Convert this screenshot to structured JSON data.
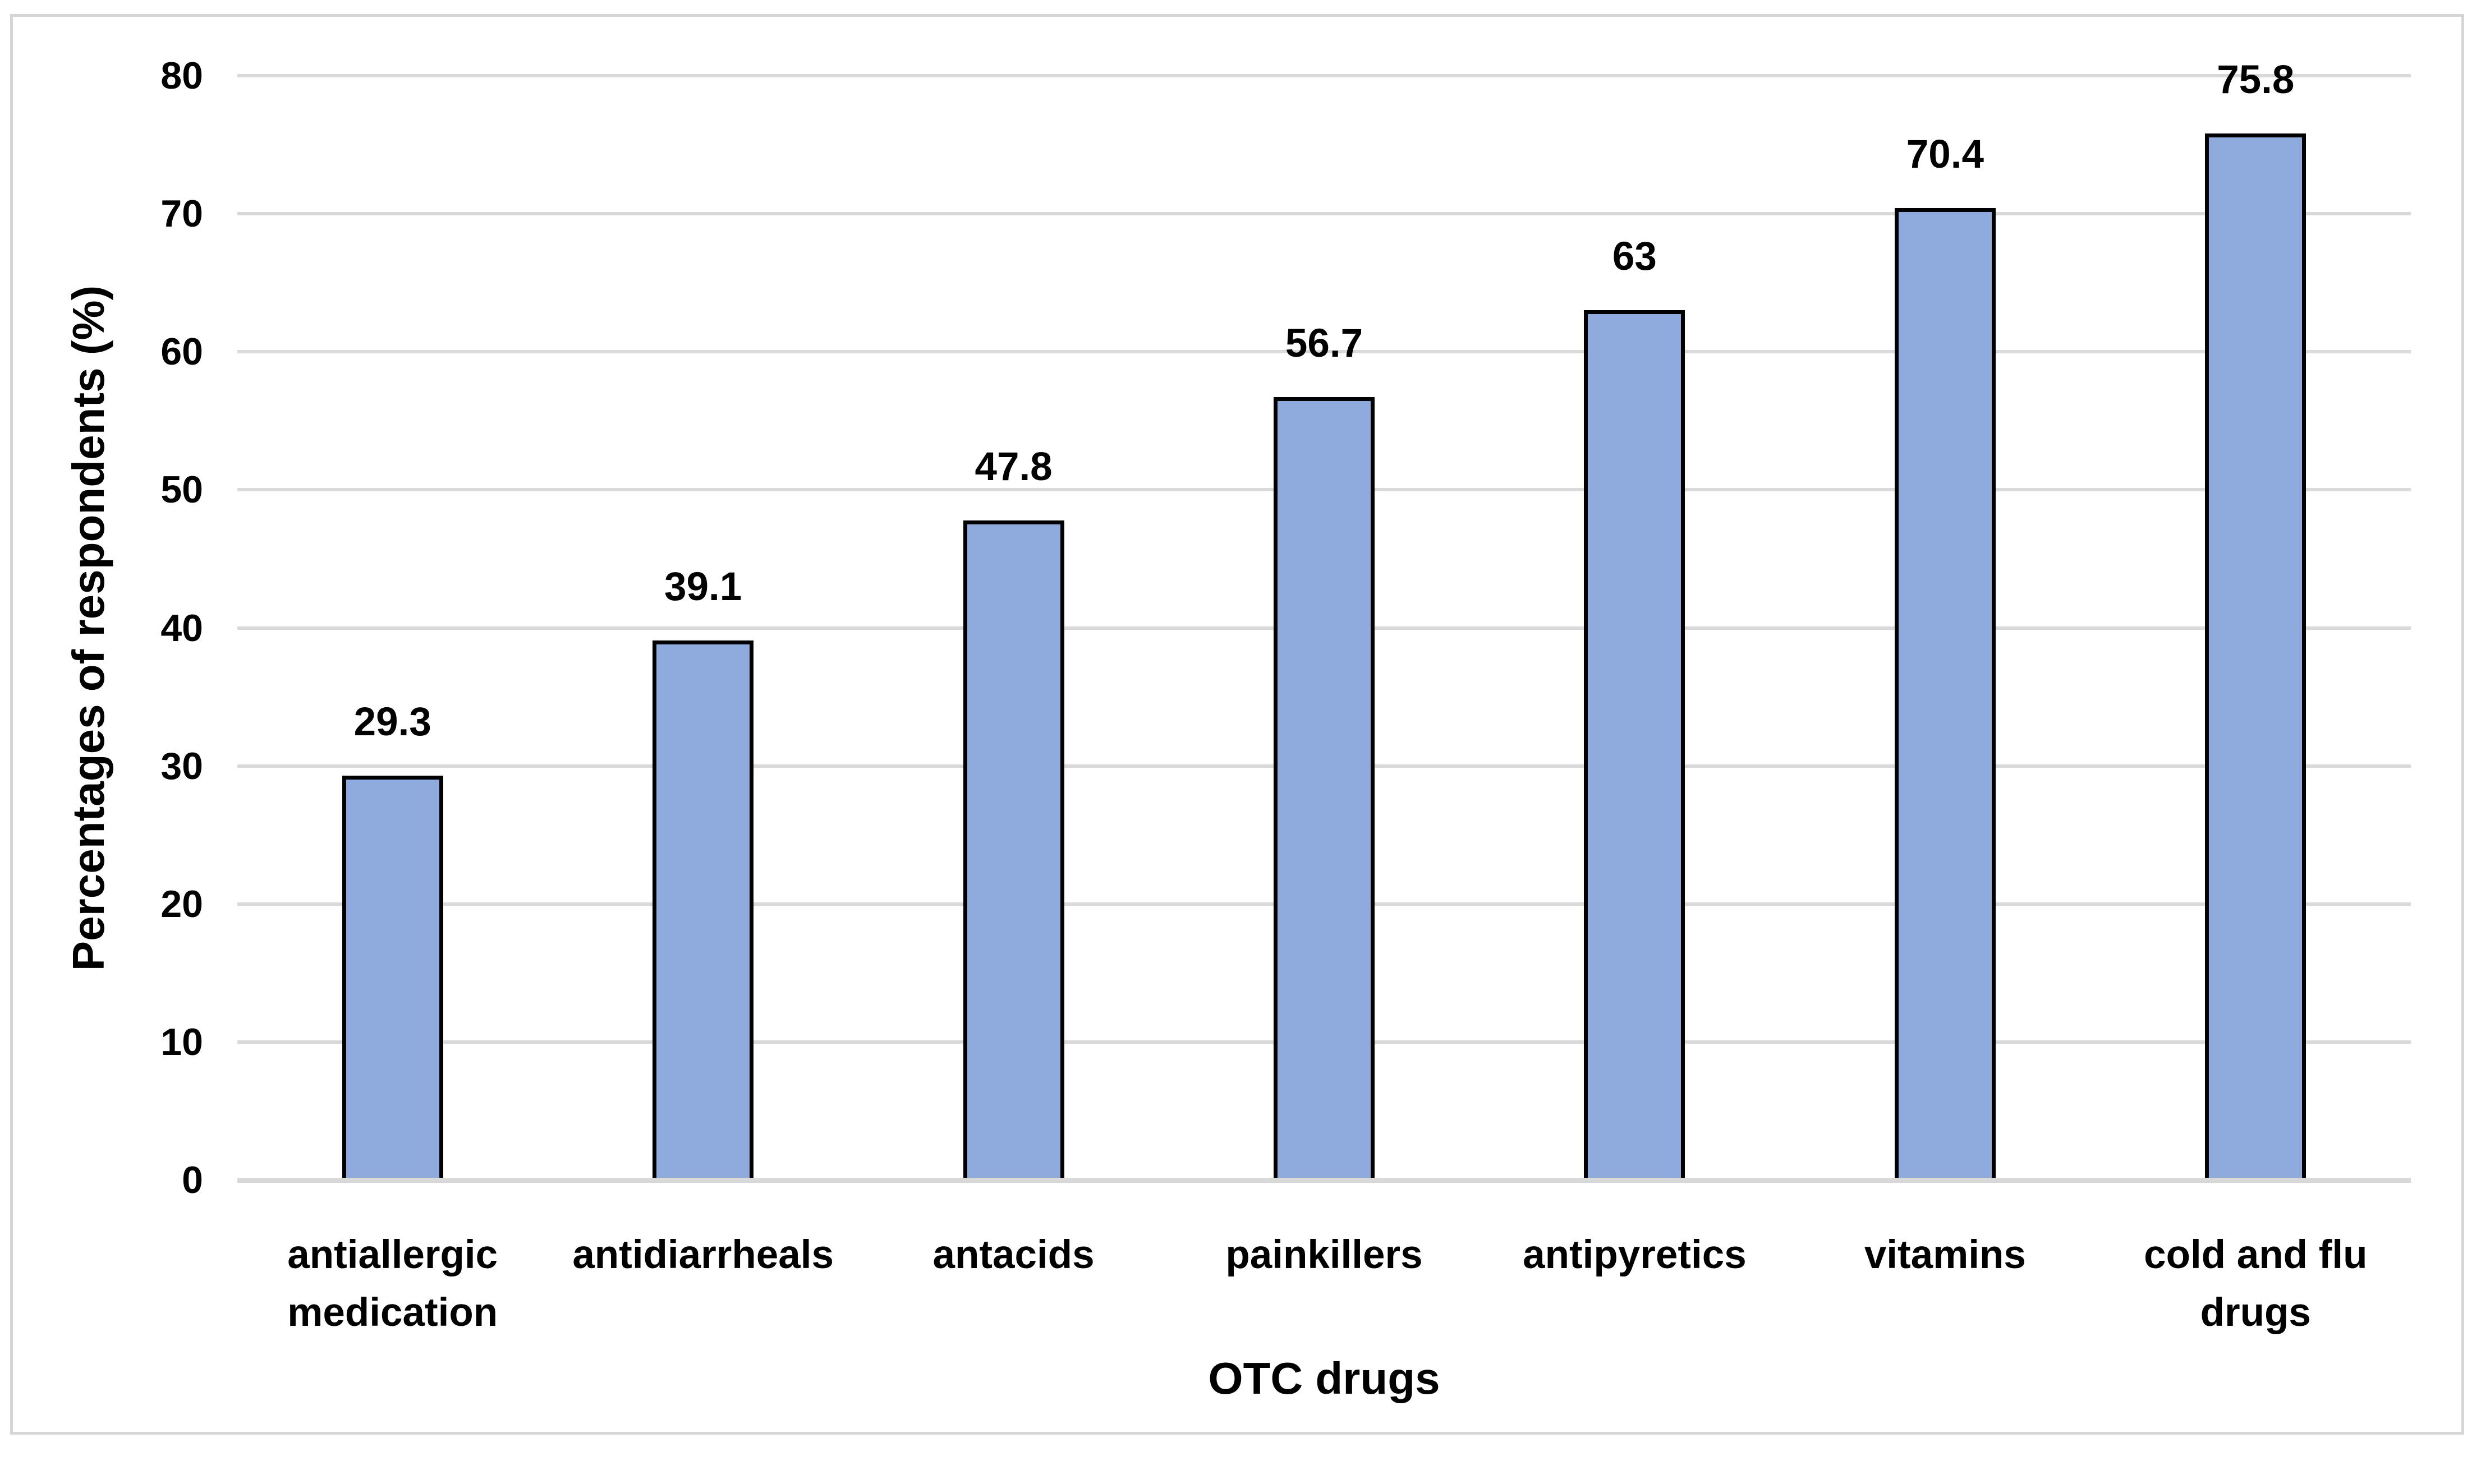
{
  "chart_data": {
    "type": "bar",
    "title": "",
    "categories": [
      "antiallergic medication",
      "antidiarrheals",
      "antacids",
      "painkillers",
      "antipyretics",
      "vitamins",
      "cold and flu drugs"
    ],
    "values": [
      29.3,
      39.1,
      47.8,
      56.7,
      63,
      70.4,
      75.8
    ],
    "data_labels": [
      "29.3",
      "39.1",
      "47.8",
      "56.7",
      "63",
      "70.4",
      "75.8"
    ],
    "xlabel": "OTC drugs",
    "ylabel": "Percentages of respondents (%)",
    "ylim": [
      0,
      80
    ],
    "yticks": [
      0,
      10,
      20,
      30,
      40,
      50,
      60,
      70,
      80
    ],
    "grid": "horizontal",
    "legend": "none",
    "colors": {
      "bar_fill": "#8FAADC",
      "bar_border": "#000000",
      "gridline": "#D9D9D9",
      "axis_line": "#D9D9D9",
      "frame_border": "#D6D6D6",
      "background": "#FFFFFF",
      "text": "#000000"
    }
  }
}
